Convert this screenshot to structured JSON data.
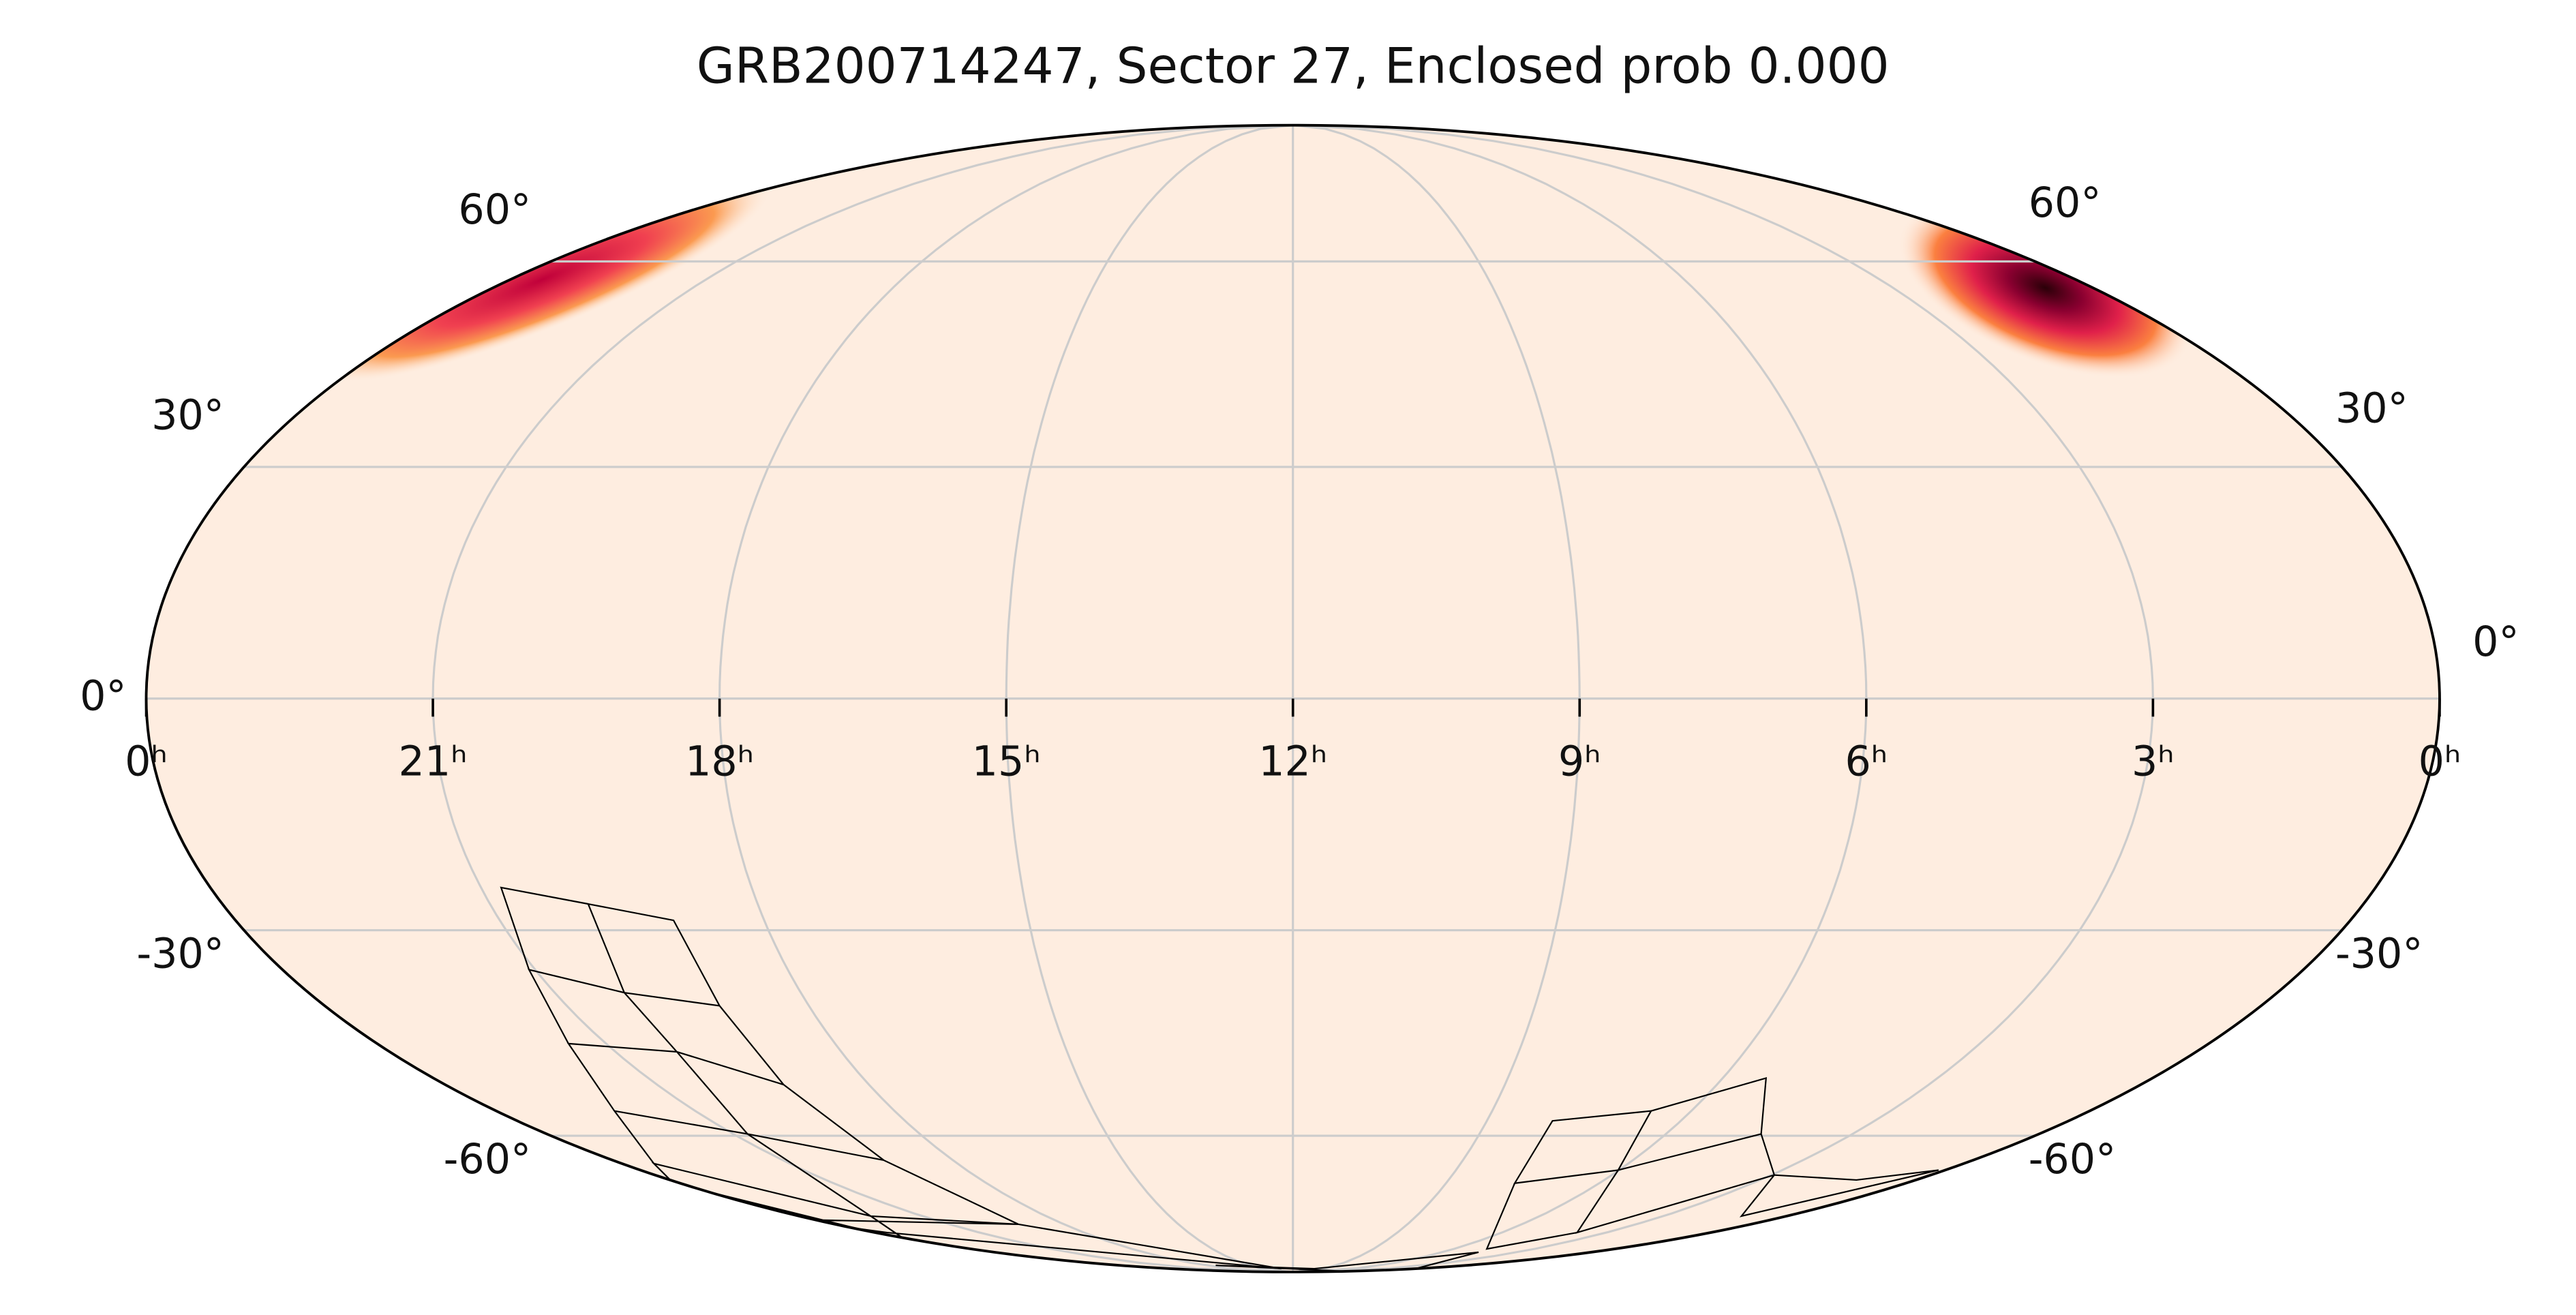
{
  "chart_data": {
    "type": "skymap",
    "title": "GRB200714247, Sector 27, Enclosed prob 0.000",
    "xticks": [
      {
        "value": 24,
        "label": "0ʰ"
      },
      {
        "value": 21,
        "label": "21ʰ"
      },
      {
        "value": 18,
        "label": "18ʰ"
      },
      {
        "value": 15,
        "label": "15ʰ"
      },
      {
        "value": 12,
        "label": "12ʰ"
      },
      {
        "value": 9,
        "label": "9ʰ"
      },
      {
        "value": 6,
        "label": "6ʰ"
      },
      {
        "value": 3,
        "label": "3ʰ"
      },
      {
        "value": 0,
        "label": "0ʰ"
      }
    ],
    "xlim": [
      24,
      0
    ],
    "yticks_left": [
      {
        "value": 60,
        "label": "60°"
      },
      {
        "value": 30,
        "label": "30°"
      },
      {
        "value": 0,
        "label": "0°"
      },
      {
        "value": -30,
        "label": "-30°"
      },
      {
        "value": -60,
        "label": "-60°"
      }
    ],
    "yticks_right": [
      {
        "value": 60,
        "label": "60°"
      },
      {
        "value": 30,
        "label": "30°"
      },
      {
        "value": 0,
        "label": "0°"
      },
      {
        "value": -30,
        "label": "-30°"
      },
      {
        "value": -60,
        "label": "-60°"
      }
    ],
    "ylim": [
      -90,
      90
    ],
    "grid": true
  }
}
